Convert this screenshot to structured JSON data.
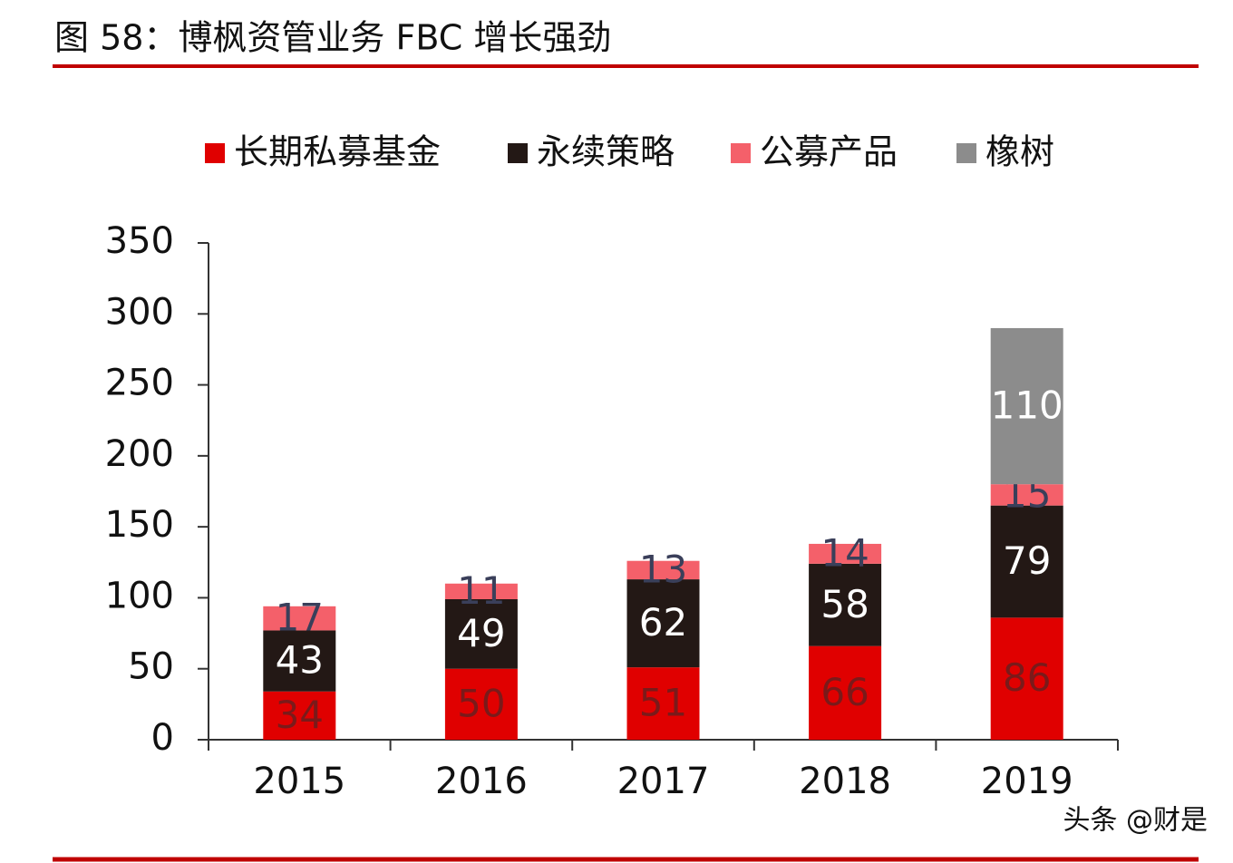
{
  "chart_data": {
    "type": "stacked_bar",
    "title": "图 58：博枫资管业务 FBC 增长强劲",
    "categories": [
      "2015",
      "2016",
      "2017",
      "2018",
      "2019"
    ],
    "series": [
      {
        "name": "长期私募基金",
        "color": "#e00000",
        "label_color": "#7a1a1a",
        "values": [
          34,
          50,
          51,
          66,
          86
        ]
      },
      {
        "name": "永续策略",
        "color": "#231815",
        "label_color": "#ffffff",
        "values": [
          43,
          49,
          62,
          58,
          79
        ]
      },
      {
        "name": "公募产品",
        "color": "#f4606a",
        "label_color": "#3a3f5a",
        "values": [
          17,
          11,
          13,
          14,
          15
        ]
      },
      {
        "name": "橡树",
        "color": "#8c8c8c",
        "label_color": "#ffffff",
        "values": [
          null,
          null,
          null,
          null,
          110
        ]
      }
    ],
    "ylim": [
      0,
      350
    ],
    "yticks": [
      0,
      50,
      100,
      150,
      200,
      250,
      300,
      350
    ],
    "watermark": "头条 @财是"
  }
}
